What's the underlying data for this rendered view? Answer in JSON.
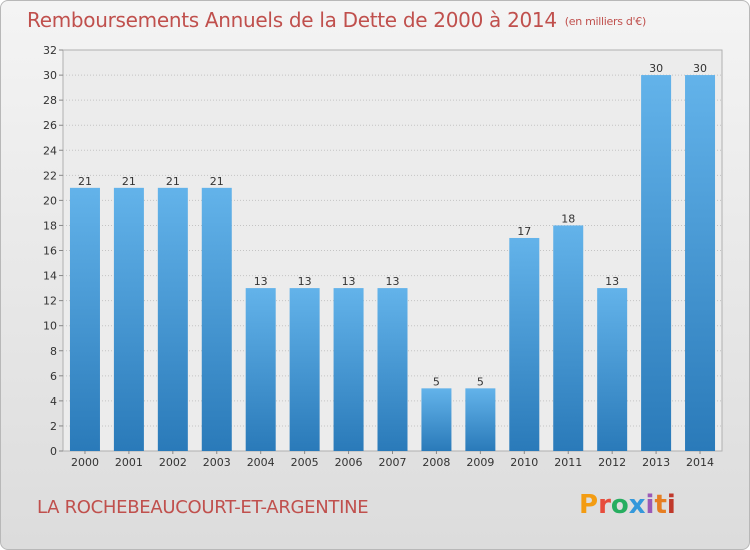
{
  "chart_data": {
    "type": "bar",
    "title": "Remboursements Annuels de la Dette de 2000 à 2014",
    "subtitle": "(en milliers d'€)",
    "categories": [
      "2000",
      "2001",
      "2002",
      "2003",
      "2004",
      "2005",
      "2006",
      "2007",
      "2008",
      "2009",
      "2010",
      "2011",
      "2012",
      "2013",
      "2014"
    ],
    "values": [
      21,
      21,
      21,
      21,
      13,
      13,
      13,
      13,
      5,
      5,
      17,
      18,
      13,
      30,
      30
    ],
    "ylim": [
      0,
      32
    ],
    "yticks": [
      0,
      2,
      4,
      6,
      8,
      10,
      12,
      14,
      16,
      18,
      20,
      22,
      24,
      26,
      28,
      30,
      32
    ],
    "grid": true,
    "bar_color": "#4a9fdc"
  },
  "footer": {
    "commune": "LA ROCHEBEAUCOURT-ET-ARGENTINE",
    "logo_text": "Proxiti",
    "logo_colors": [
      "#f39c12",
      "#e74c3c",
      "#27ae60",
      "#3498db",
      "#9b59b6",
      "#e67e22",
      "#c0392b"
    ]
  }
}
